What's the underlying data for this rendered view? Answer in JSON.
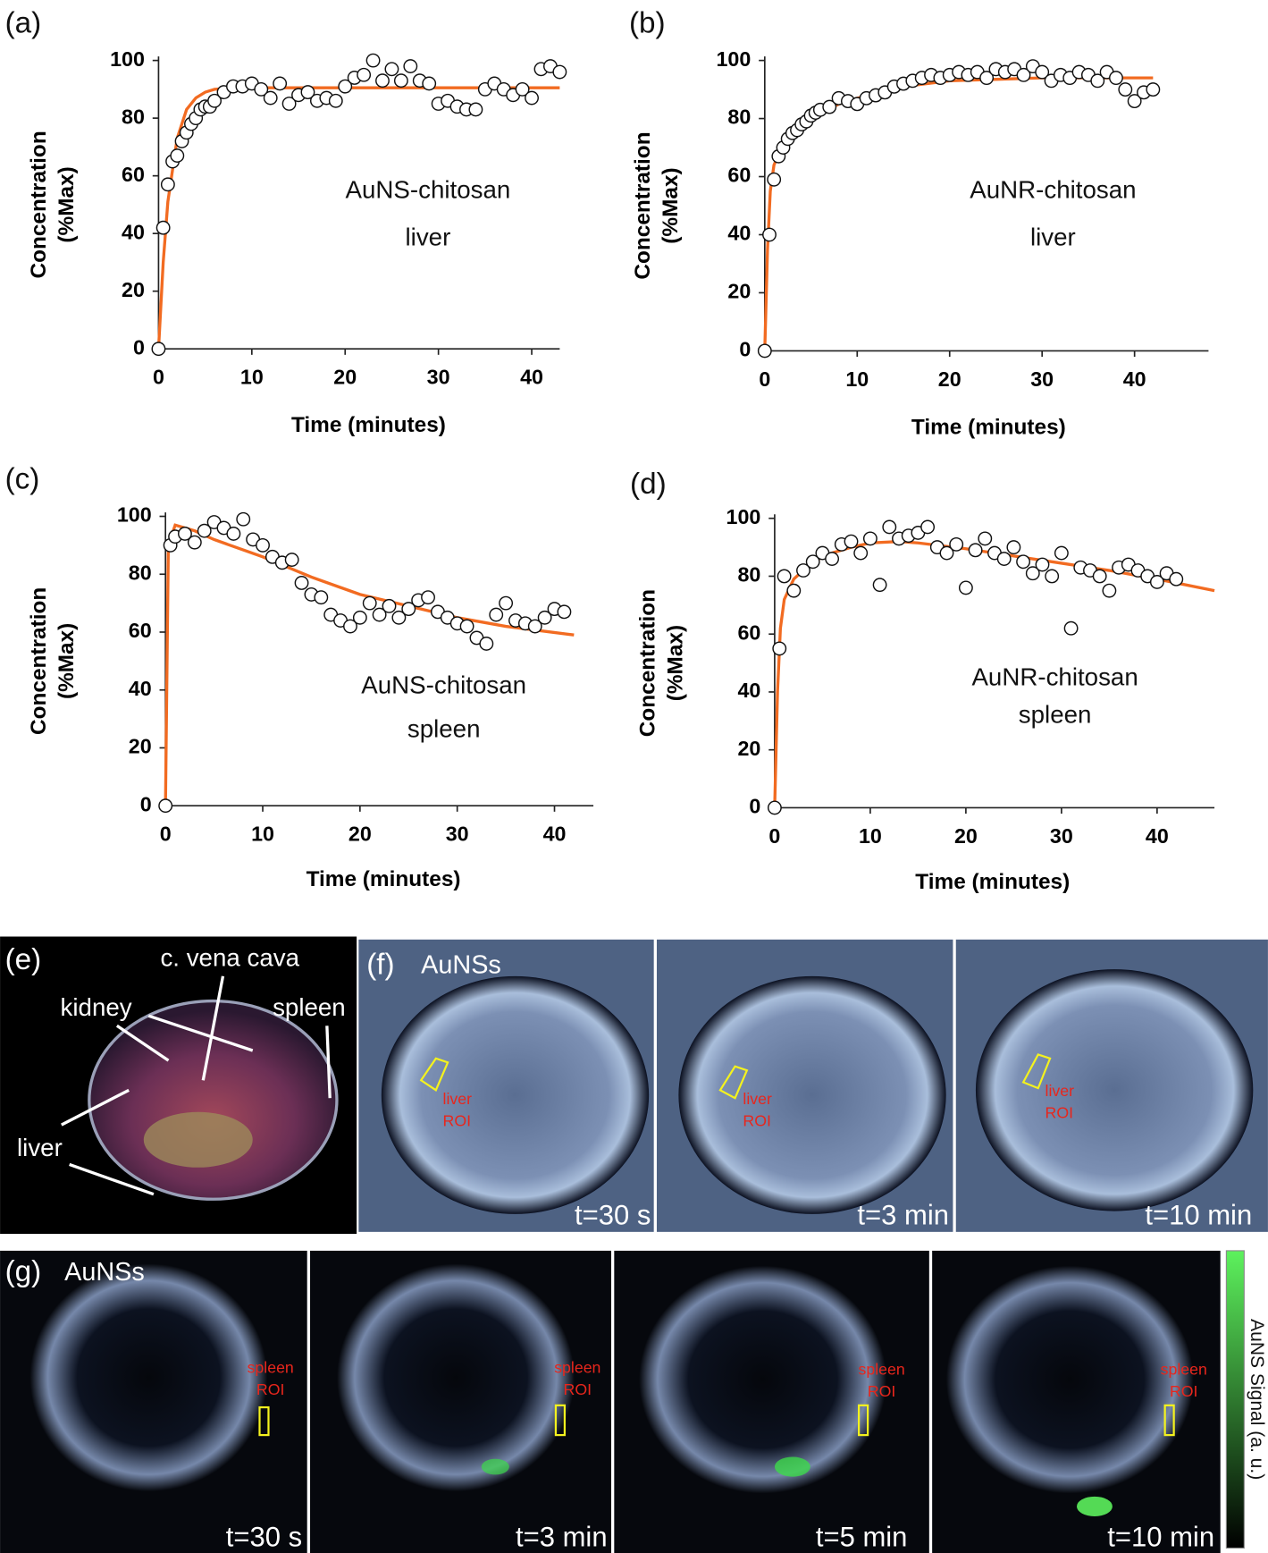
{
  "chart_data": [
    {
      "type": "scatter",
      "panel": "(a)",
      "annotation": [
        "AuNS-chitosan",
        "liver"
      ],
      "xlabel": "Time (minutes)",
      "ylabel": [
        "Concentration",
        "(%Max)"
      ],
      "xlim": [
        0,
        43
      ],
      "ylim": [
        0,
        100
      ],
      "xticks": [
        0,
        10,
        20,
        30,
        40
      ],
      "yticks": [
        0,
        20,
        40,
        60,
        80,
        100
      ],
      "series": [
        {
          "style": "markers",
          "x": [
            0,
            0.5,
            1,
            1.5,
            2,
            2.5,
            3,
            3.5,
            4,
            4.5,
            5,
            5.5,
            6,
            7,
            8,
            9,
            10,
            11,
            12,
            13,
            14,
            15,
            16,
            17,
            18,
            19,
            20,
            21,
            22,
            23,
            24,
            25,
            26,
            27,
            28,
            29,
            30,
            31,
            32,
            33,
            34,
            35,
            36,
            37,
            38,
            39,
            40,
            41,
            42,
            43
          ],
          "values": [
            0,
            42,
            57,
            65,
            67,
            72,
            75,
            78,
            80,
            83,
            84,
            84,
            86,
            89,
            91,
            91,
            92,
            90,
            87,
            92,
            85,
            88,
            89,
            86,
            87,
            86,
            91,
            94,
            95,
            100,
            93,
            97,
            93,
            98,
            93,
            92,
            85,
            86,
            84,
            83,
            83,
            90,
            92,
            90,
            88,
            90,
            87,
            97,
            98,
            96
          ]
        },
        {
          "style": "line",
          "color": "#f26b21",
          "x": [
            0,
            0.5,
            1,
            2,
            3,
            4,
            5,
            6,
            8,
            10,
            15,
            20,
            30,
            43
          ],
          "values": [
            0,
            30,
            51,
            73,
            83,
            87,
            89,
            90,
            90.5,
            90.5,
            90.5,
            90.5,
            90.5,
            90.5
          ]
        }
      ]
    },
    {
      "type": "scatter",
      "panel": "(b)",
      "annotation": [
        "AuNR-chitosan",
        "liver"
      ],
      "xlabel": "Time (minutes)",
      "ylabel": [
        "Concentration",
        "(%Max)"
      ],
      "xlim": [
        0,
        48
      ],
      "ylim": [
        0,
        100
      ],
      "xticks": [
        0,
        10,
        20,
        30,
        40
      ],
      "yticks": [
        0,
        20,
        40,
        60,
        80,
        100
      ],
      "series": [
        {
          "style": "markers",
          "x": [
            0,
            0.5,
            1,
            1.5,
            2,
            2.5,
            3,
            3.5,
            4,
            4.5,
            5,
            5.5,
            6,
            7,
            8,
            9,
            10,
            11,
            12,
            13,
            14,
            15,
            16,
            17,
            18,
            19,
            20,
            21,
            22,
            23,
            24,
            25,
            26,
            27,
            28,
            29,
            30,
            31,
            32,
            33,
            34,
            35,
            36,
            37,
            38,
            39,
            40,
            41,
            42
          ],
          "values": [
            0,
            40,
            59,
            67,
            70,
            73,
            75,
            76,
            78,
            79,
            81,
            82,
            83,
            84,
            87,
            86,
            85,
            87,
            88,
            89,
            91,
            92,
            93,
            94,
            95,
            94,
            95,
            96,
            95,
            96,
            94,
            97,
            96,
            97,
            95,
            98,
            96,
            93,
            95,
            94,
            96,
            95,
            93,
            96,
            94,
            90,
            86,
            89,
            90
          ]
        },
        {
          "style": "line",
          "color": "#f26b21",
          "x": [
            0,
            0.3,
            0.6,
            1,
            2,
            3,
            5,
            8,
            10,
            15,
            20,
            30,
            42
          ],
          "values": [
            0,
            35,
            55,
            64,
            71,
            75,
            80,
            85,
            87,
            91,
            93,
            94,
            94
          ]
        }
      ]
    },
    {
      "type": "scatter",
      "panel": "(c)",
      "annotation": [
        "AuNS-chitosan",
        "spleen"
      ],
      "xlabel": "Time (minutes)",
      "ylabel": [
        "Concentration",
        "(%Max)"
      ],
      "xlim": [
        0,
        44
      ],
      "ylim": [
        0,
        100
      ],
      "xticks": [
        0,
        10,
        20,
        30,
        40
      ],
      "yticks": [
        0,
        20,
        40,
        60,
        80,
        100
      ],
      "series": [
        {
          "style": "markers",
          "x": [
            0,
            0.5,
            1,
            2,
            3,
            4,
            5,
            6,
            7,
            8,
            9,
            10,
            11,
            12,
            13,
            14,
            15,
            16,
            17,
            18,
            19,
            20,
            21,
            22,
            23,
            24,
            25,
            26,
            27,
            28,
            29,
            30,
            31,
            32,
            33,
            34,
            35,
            36,
            37,
            38,
            39,
            40,
            41
          ],
          "values": [
            0,
            90,
            93,
            94,
            91,
            95,
            98,
            96,
            94,
            99,
            92,
            90,
            86,
            84,
            85,
            77,
            73,
            72,
            66,
            64,
            62,
            65,
            70,
            66,
            69,
            65,
            68,
            71,
            72,
            67,
            65,
            63,
            62,
            58,
            56,
            66,
            70,
            64,
            63,
            62,
            65,
            68,
            67
          ]
        },
        {
          "style": "line",
          "color": "#f26b21",
          "x": [
            0,
            0.3,
            1,
            3,
            5,
            10,
            15,
            20,
            25,
            30,
            35,
            42
          ],
          "values": [
            0,
            90,
            97,
            95,
            92,
            86,
            79,
            73,
            69,
            65,
            62,
            59
          ]
        }
      ]
    },
    {
      "type": "scatter",
      "panel": "(d)",
      "annotation": [
        "AuNR-chitosan",
        "spleen"
      ],
      "xlabel": "Time (minutes)",
      "ylabel": [
        "Concentration",
        "(%Max)"
      ],
      "xlim": [
        0,
        46
      ],
      "ylim": [
        0,
        100
      ],
      "xticks": [
        0,
        10,
        20,
        30,
        40
      ],
      "yticks": [
        0,
        20,
        40,
        60,
        80,
        100
      ],
      "series": [
        {
          "style": "markers",
          "x": [
            0,
            0.5,
            1,
            2,
            3,
            4,
            5,
            6,
            7,
            8,
            9,
            10,
            11,
            12,
            13,
            14,
            15,
            16,
            17,
            18,
            19,
            20,
            21,
            22,
            23,
            24,
            25,
            26,
            27,
            28,
            29,
            30,
            31,
            32,
            33,
            34,
            35,
            36,
            37,
            38,
            39,
            40,
            41,
            42
          ],
          "values": [
            0,
            55,
            80,
            75,
            82,
            85,
            88,
            86,
            91,
            92,
            88,
            93,
            77,
            97,
            93,
            94,
            95,
            97,
            90,
            88,
            91,
            76,
            89,
            93,
            88,
            86,
            90,
            85,
            81,
            84,
            80,
            88,
            62,
            83,
            82,
            80,
            75,
            83,
            84,
            82,
            80,
            78,
            81,
            79
          ]
        },
        {
          "style": "line",
          "color": "#f26b21",
          "x": [
            0,
            0.3,
            0.6,
            1,
            2,
            4,
            6,
            8,
            10,
            13,
            15,
            20,
            25,
            30,
            35,
            40,
            46
          ],
          "values": [
            0,
            40,
            62,
            72,
            79,
            85,
            88,
            90,
            91.5,
            92,
            91.5,
            89.5,
            87,
            84.5,
            82,
            79,
            75
          ]
        }
      ]
    }
  ],
  "images": {
    "e": {
      "panel": "(e)",
      "labels": [
        "c. vena cava",
        "kidney",
        "spleen",
        "liver"
      ]
    },
    "f": {
      "panel": "(f)",
      "agent": "AuNSs",
      "roi": [
        "liver",
        "ROI"
      ],
      "times": [
        "t=30 s",
        "t=3 min",
        "t=10 min"
      ]
    },
    "g": {
      "panel": "(g)",
      "agent": "AuNSs",
      "roi": [
        "spleen",
        "ROI"
      ],
      "times": [
        "t=30 s",
        "t=3 min",
        "t=5 min",
        "t=10 min"
      ],
      "colorbar": "AuNS Signal (a. u.)"
    }
  }
}
